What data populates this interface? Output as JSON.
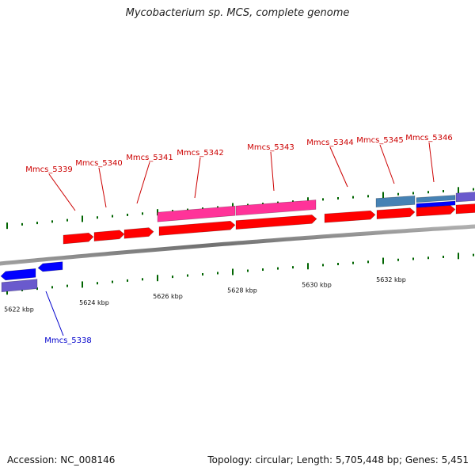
{
  "title": "Mycobacterium sp. MCS, complete genome",
  "footer": {
    "accession": "Accession: NC_008146",
    "summary": "Topology: circular; Length: 5,705,448 bp; Genes: 5,451"
  },
  "colors": {
    "backbone": "#808080",
    "cds_forward": "#ff0000",
    "cds_reverse": "#0000ff",
    "forward_label": "#cc0000",
    "reverse_label": "#0000cc",
    "cog_pink": "#ff3399",
    "cog_steelblue": "#4682b4",
    "cog_slateblue": "#6a5acd",
    "tick_mark": "#006400"
  },
  "chart_data": {
    "type": "linear-genome-map",
    "scale_labels": [
      {
        "kbp": 5622,
        "text": "5622 kbp"
      },
      {
        "kbp": 5624,
        "text": "5624 kbp"
      },
      {
        "kbp": 5626,
        "text": "5626 kbp"
      },
      {
        "kbp": 5628,
        "text": "5628 kbp"
      },
      {
        "kbp": 5630,
        "text": "5630 kbp"
      },
      {
        "kbp": 5632,
        "text": "5632 kbp"
      }
    ],
    "labeled_genes": [
      {
        "name": "Mmcs_5338",
        "strand": "reverse"
      },
      {
        "name": "Mmcs_5339",
        "strand": "forward"
      },
      {
        "name": "Mmcs_5340",
        "strand": "forward"
      },
      {
        "name": "Mmcs_5341",
        "strand": "forward"
      },
      {
        "name": "Mmcs_5342",
        "strand": "forward"
      },
      {
        "name": "Mmcs_5343",
        "strand": "forward"
      },
      {
        "name": "Mmcs_5344",
        "strand": "forward"
      },
      {
        "name": "Mmcs_5345",
        "strand": "forward"
      },
      {
        "name": "Mmcs_5346",
        "strand": "forward"
      }
    ]
  }
}
